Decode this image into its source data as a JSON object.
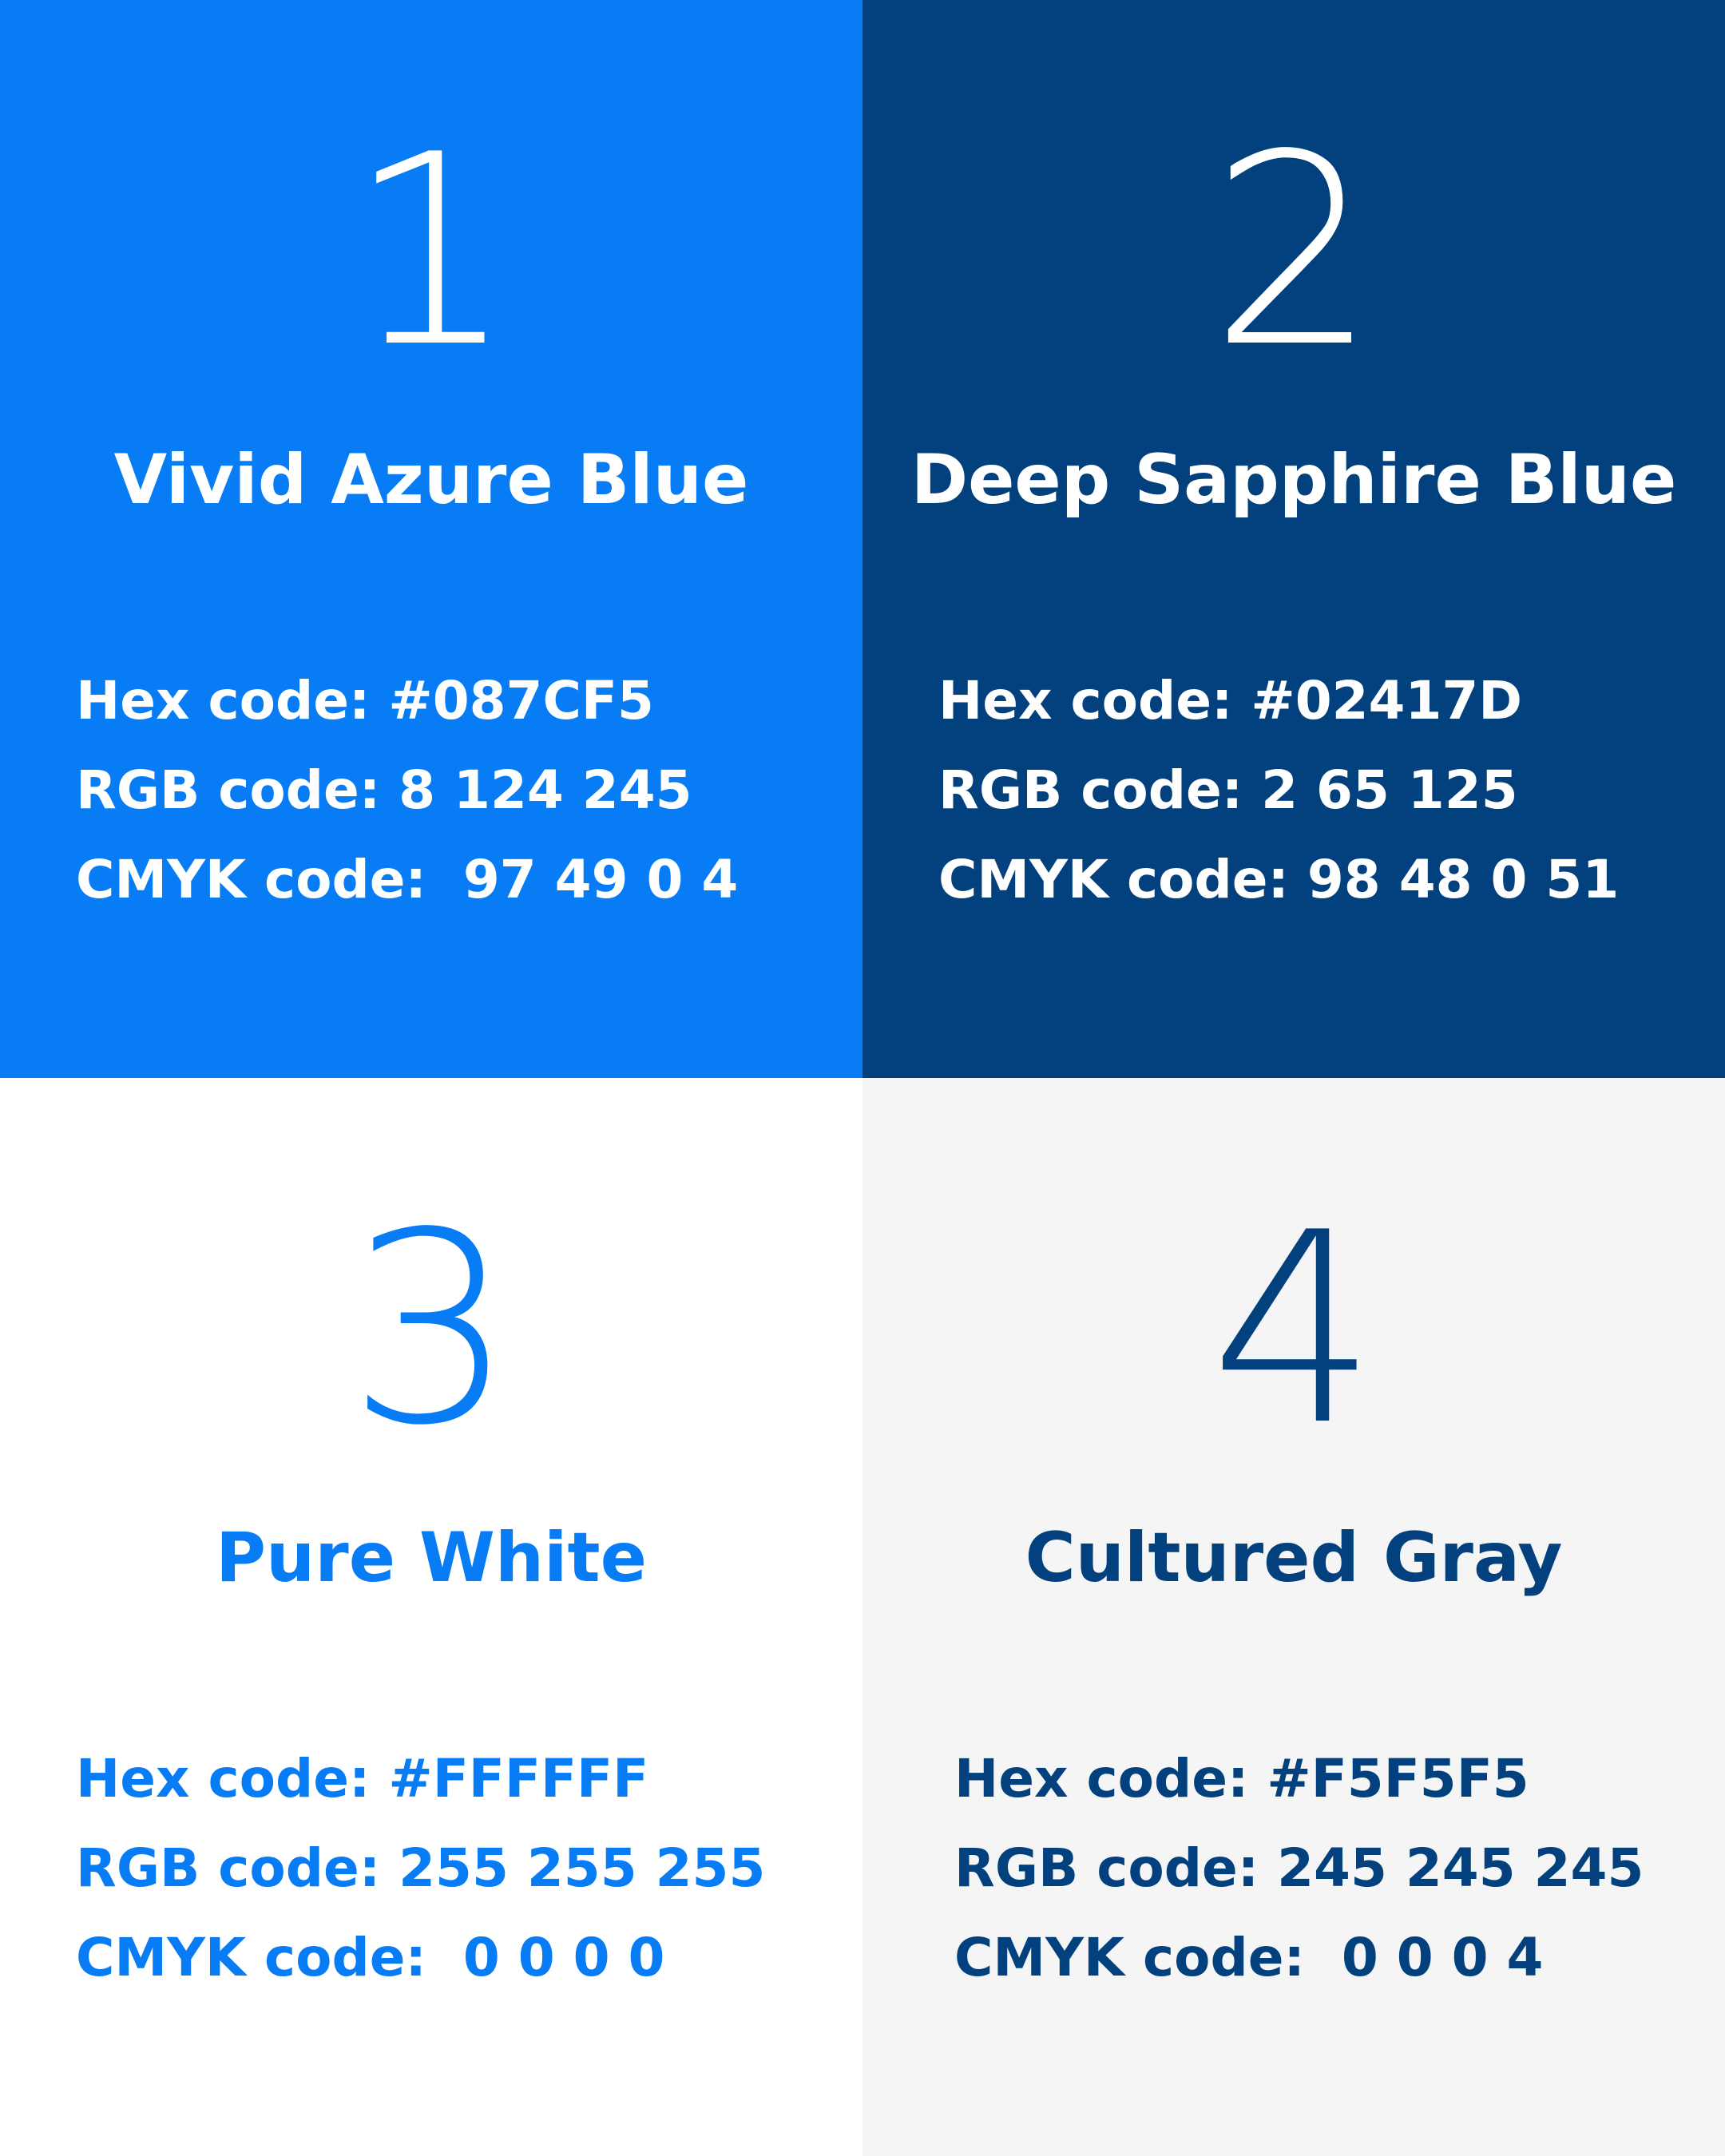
{
  "swatches": [
    {
      "number": "1",
      "name": "Vivid Azure Blue",
      "background": "#087CF5",
      "color": "#FFFFFF",
      "lines": [
        "Hex code: #087CF5",
        "RGB code: 8 124 245",
        "CMYK code:  97 49 0 4"
      ]
    },
    {
      "number": "2",
      "name": "Deep Sapphire Blue",
      "background": "#02417D",
      "color": "#FFFFFF",
      "lines": [
        "Hex code: #02417D",
        "RGB code: 2 65 125",
        "CMYK code: 98 48 0 51"
      ]
    },
    {
      "number": "3",
      "name": "Pure White",
      "background": "#FFFFFF",
      "color": "#087CF5",
      "lines": [
        "Hex code: #FFFFFF",
        "RGB code: 255 255 255",
        "CMYK code:  0 0 0 0"
      ]
    },
    {
      "number": "4",
      "name": "Cultured Gray",
      "background": "#F5F5F5",
      "color": "#02417D",
      "lines": [
        "Hex code: #F5F5F5",
        "RGB code: 245 245 245",
        "CMYK code:  0 0 0 4"
      ]
    }
  ]
}
